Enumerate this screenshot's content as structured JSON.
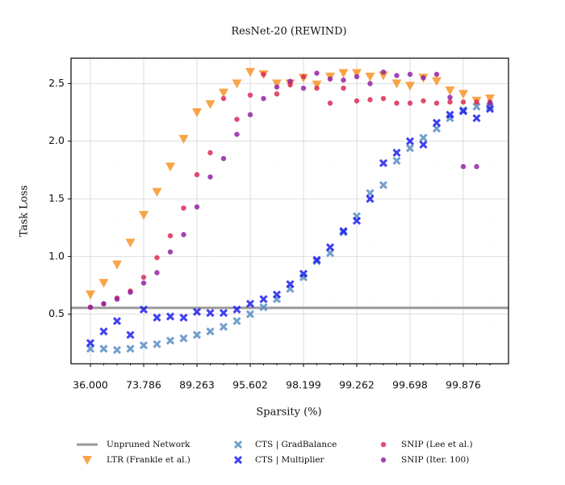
{
  "chart_data": {
    "type": "scatter",
    "title": "ResNet-20 (REWIND)",
    "x_label": "Sparsity (%)",
    "y_label": "Task Loss",
    "categories": [
      "36.000",
      null,
      null,
      null,
      "73.786",
      null,
      null,
      null,
      "89.263",
      null,
      null,
      null,
      "95.602",
      null,
      null,
      null,
      "98.199",
      null,
      null,
      null,
      "99.262",
      null,
      null,
      null,
      "99.698",
      null,
      null,
      null,
      "99.876",
      null,
      null
    ],
    "ylim": [
      0.07,
      2.72
    ],
    "yticks": [
      0.5,
      {
        "value": 1,
        "label": "1.0"
      },
      1.5,
      {
        "value": 2,
        "label": "2.0"
      },
      2.5
    ],
    "grid": true,
    "reference_line": {
      "name": "Unpruned Network",
      "color": "#9a9a9a",
      "value": 0.555
    },
    "series": [
      {
        "name": "LTR (Frankle et al.)",
        "color": "#f7952a",
        "marker": "triangle",
        "values": [
          0.67,
          0.77,
          0.93,
          1.12,
          1.36,
          1.56,
          1.78,
          2.02,
          2.25,
          2.32,
          2.42,
          2.5,
          2.6,
          2.58,
          2.5,
          2.5,
          2.55,
          2.49,
          2.56,
          2.59,
          2.59,
          2.56,
          2.57,
          2.5,
          2.48,
          2.55,
          2.52,
          2.44,
          2.41,
          2.35,
          2.37
        ]
      },
      {
        "name": "CTS | GradBalance",
        "color": "#5b8ec4",
        "marker": "x",
        "values": [
          0.2,
          0.2,
          0.19,
          0.2,
          0.23,
          0.24,
          0.27,
          0.29,
          0.32,
          0.35,
          0.39,
          0.44,
          0.5,
          0.56,
          0.63,
          0.72,
          0.82,
          0.96,
          1.03,
          1.21,
          1.35,
          1.55,
          1.62,
          1.83,
          1.94,
          2.03,
          2.11,
          2.2,
          2.27,
          2.3,
          2.3
        ]
      },
      {
        "name": "CTS | Multiplier",
        "color": "#1f1fee",
        "marker": "x",
        "values": [
          0.25,
          0.35,
          0.44,
          0.32,
          0.54,
          0.47,
          0.48,
          0.47,
          0.52,
          0.51,
          0.51,
          0.54,
          0.59,
          0.63,
          0.67,
          0.76,
          0.85,
          0.97,
          1.08,
          1.22,
          1.31,
          1.5,
          1.81,
          1.9,
          2.0,
          1.97,
          2.16,
          2.23,
          2.26,
          2.2,
          2.28
        ]
      },
      {
        "name": "SNIP (Lee et al.)",
        "color": "#dc2c55",
        "marker": "circle",
        "values": [
          0.56,
          0.59,
          0.64,
          0.7,
          0.82,
          0.99,
          1.18,
          1.42,
          1.71,
          1.9,
          2.37,
          2.19,
          2.4,
          2.58,
          2.41,
          2.49,
          2.56,
          2.46,
          2.33,
          2.46,
          2.35,
          2.36,
          2.37,
          2.33,
          2.33,
          2.35,
          2.33,
          2.34,
          2.34,
          2.34,
          2.34
        ]
      },
      {
        "name": "SNIP (Iter. 100)",
        "color": "#9424a6",
        "marker": "circle",
        "values": [
          0.56,
          0.59,
          0.63,
          0.69,
          0.77,
          0.86,
          1.04,
          1.19,
          1.43,
          1.69,
          1.85,
          2.06,
          2.23,
          2.37,
          2.47,
          2.52,
          2.46,
          2.59,
          2.54,
          2.53,
          2.56,
          2.5,
          2.6,
          2.57,
          2.58,
          2.55,
          2.58,
          2.38,
          1.78,
          1.78,
          2.33
        ]
      }
    ]
  }
}
